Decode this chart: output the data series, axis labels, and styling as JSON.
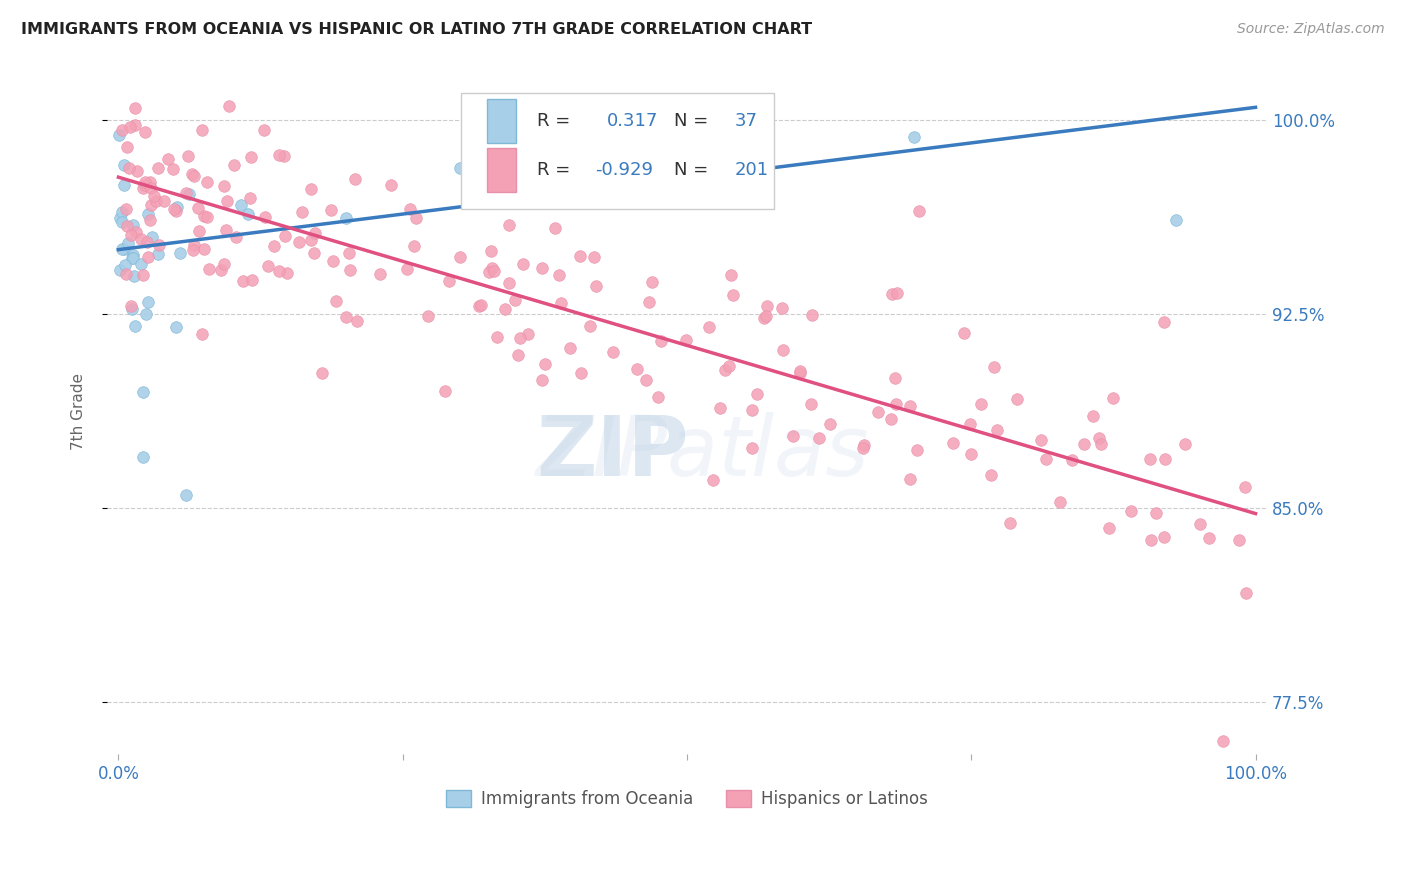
{
  "title": "IMMIGRANTS FROM OCEANIA VS HISPANIC OR LATINO 7TH GRADE CORRELATION CHART",
  "source": "Source: ZipAtlas.com",
  "ylabel": "7th Grade",
  "legend_label1": "Immigrants from Oceania",
  "legend_label2": "Hispanics or Latinos",
  "legend_v1": "0.317",
  "legend_nv1": "37",
  "legend_v2": "-0.929",
  "legend_nv2": "201",
  "color_blue": "#a8cfe8",
  "color_pink": "#f4a0b5",
  "color_blue_line": "#3a7bbf",
  "color_pink_line": "#e05080",
  "background_color": "#ffffff",
  "xlim": [
    0.0,
    1.0
  ],
  "ylim": [
    0.755,
    1.02
  ],
  "ytick_vals": [
    1.0,
    0.925,
    0.85,
    0.775
  ],
  "ytick_labels": [
    "100.0%",
    "92.5%",
    "85.0%",
    "77.5%"
  ],
  "blue_line_x": [
    0.0,
    1.0
  ],
  "blue_line_y": [
    0.95,
    1.005
  ],
  "pink_line_x": [
    0.0,
    1.0
  ],
  "pink_line_y": [
    0.978,
    0.848
  ]
}
